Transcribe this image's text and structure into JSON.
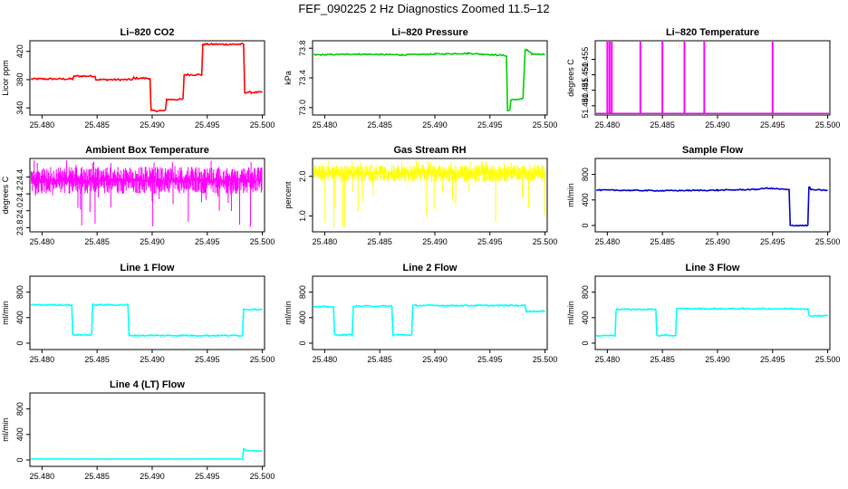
{
  "figure": {
    "title": "FEF_090225  2 Hz Diagnostics Zoomed 11.5–12"
  },
  "chart_data": [
    {
      "type": "line",
      "title": "Li–820 CO2",
      "ylabel": "Licor ppm",
      "xlim": [
        25.4789,
        25.5002
      ],
      "ylim": [
        330,
        435
      ],
      "xticks": [
        25.48,
        25.485,
        25.49,
        25.495,
        25.5
      ],
      "xtick_labels": [
        "25.480",
        "25.485",
        "25.490",
        "25.495",
        "25.500"
      ],
      "yticks": [
        340,
        380,
        420
      ],
      "ytick_labels": [
        "340",
        "380",
        "420"
      ],
      "color": "#ff0000",
      "noise": 1.2,
      "series": [
        {
          "x": [
            25.479,
            25.4828,
            25.4829,
            25.4848,
            25.4849,
            25.4882,
            25.4883,
            25.4898,
            25.4899,
            25.4912,
            25.4913,
            25.4928,
            25.4929,
            25.4945,
            25.4946,
            25.4983,
            25.4984,
            25.5
          ],
          "y": [
            381,
            381,
            385,
            385,
            380,
            380,
            382,
            382,
            336,
            336,
            352,
            352,
            387,
            387,
            430,
            430,
            362,
            362
          ]
        }
      ]
    },
    {
      "type": "line",
      "title": "Li–820 Pressure",
      "ylabel": "kPa",
      "xlim": [
        25.4789,
        25.5002
      ],
      "ylim": [
        72.9,
        73.9
      ],
      "xticks": [
        25.48,
        25.485,
        25.49,
        25.495,
        25.5
      ],
      "xtick_labels": [
        "25.480",
        "25.485",
        "25.490",
        "25.495",
        "25.500"
      ],
      "yticks": [
        73.0,
        73.4,
        73.8
      ],
      "ytick_labels": [
        "73.0",
        "73.4",
        "73.8"
      ],
      "color": "#00cc00",
      "noise": 0.008,
      "series": [
        {
          "x": [
            25.479,
            25.483,
            25.487,
            25.49,
            25.493,
            25.4955,
            25.4965,
            25.4966,
            25.4968,
            25.4969,
            25.498,
            25.4982,
            25.4984,
            25.4988,
            25.5
          ],
          "y": [
            73.71,
            73.72,
            73.71,
            73.72,
            73.73,
            73.71,
            73.7,
            72.96,
            72.96,
            73.1,
            73.12,
            73.78,
            73.77,
            73.72,
            73.72
          ]
        }
      ]
    },
    {
      "type": "line",
      "title": "Li–820 Temperature",
      "ylabel": "degrees C",
      "xlim": [
        25.4789,
        25.5002
      ],
      "ylim": [
        51.437,
        51.461
      ],
      "xticks": [
        25.48,
        25.485,
        25.49,
        25.495,
        25.5
      ],
      "xtick_labels": [
        "25.480",
        "25.485",
        "25.490",
        "25.495",
        "25.500"
      ],
      "yticks": [
        51.44,
        51.445,
        51.45,
        51.455
      ],
      "ytick_labels": [
        "51.440",
        "51.445",
        "51.450",
        "51.455"
      ],
      "color": "#ff00ff",
      "baseline": 51.437,
      "spike_to": 51.461,
      "spikes": [
        25.48,
        25.4802,
        25.4804,
        25.483,
        25.485,
        25.487,
        25.4888,
        25.495
      ]
    },
    {
      "type": "line",
      "title": "Ambient Box Temperature",
      "ylabel": "degrees C",
      "xlim": [
        25.4789,
        25.5002
      ],
      "ylim": [
        23.75,
        24.62
      ],
      "xticks": [
        25.48,
        25.485,
        25.49,
        25.495,
        25.5
      ],
      "xtick_labels": [
        "25.480",
        "25.485",
        "25.490",
        "25.495",
        "25.500"
      ],
      "yticks": [
        23.8,
        24.0,
        24.2,
        24.4
      ],
      "ytick_labels": [
        "23.8",
        "24.0",
        "24.2",
        "24.4"
      ],
      "color": "#ff00ff",
      "band": {
        "x0": 25.479,
        "x1": 25.5,
        "low": 24.2,
        "high": 24.52,
        "spike_low": 23.8,
        "spike_high": 24.6
      }
    },
    {
      "type": "line",
      "title": "Gas Stream RH",
      "ylabel": "percent",
      "xlim": [
        25.4789,
        25.5002
      ],
      "ylim": [
        0.6,
        2.45
      ],
      "xticks": [
        25.48,
        25.485,
        25.49,
        25.495,
        25.5
      ],
      "xtick_labels": [
        "25.480",
        "25.485",
        "25.490",
        "25.495",
        "25.500"
      ],
      "yticks": [
        1.0,
        2.0
      ],
      "ytick_labels": [
        "1.0",
        "2.0"
      ],
      "color": "#ffff00",
      "band": {
        "x0": 25.479,
        "x1": 25.5,
        "low": 1.85,
        "high": 2.3,
        "spike_low": 0.65,
        "spike_high": 2.4
      }
    },
    {
      "type": "line",
      "title": "Sample Flow",
      "ylabel": "ml/min",
      "xlim": [
        25.4789,
        25.5002
      ],
      "ylim": [
        -100,
        1050
      ],
      "xticks": [
        25.48,
        25.485,
        25.49,
        25.495,
        25.5
      ],
      "xtick_labels": [
        "25.480",
        "25.485",
        "25.490",
        "25.495",
        "25.500"
      ],
      "yticks": [
        0,
        400,
        800
      ],
      "ytick_labels": [
        "0",
        "400",
        "800"
      ],
      "color": "#0000cc",
      "noise": 8,
      "series": [
        {
          "x": [
            25.479,
            25.485,
            25.49,
            25.4935,
            25.4945,
            25.4965,
            25.4966,
            25.4982,
            25.4983,
            25.4985,
            25.5
          ],
          "y": [
            555,
            545,
            552,
            565,
            585,
            560,
            0,
            0,
            610,
            560,
            550
          ]
        }
      ]
    },
    {
      "type": "line",
      "title": "Line 1 Flow",
      "ylabel": "ml/min",
      "xlim": [
        25.4789,
        25.5002
      ],
      "ylim": [
        -100,
        1050
      ],
      "xticks": [
        25.48,
        25.485,
        25.49,
        25.495,
        25.5
      ],
      "xtick_labels": [
        "25.480",
        "25.485",
        "25.490",
        "25.495",
        "25.500"
      ],
      "yticks": [
        0,
        400,
        800
      ],
      "ytick_labels": [
        "0",
        "400",
        "800"
      ],
      "color": "#00ffff",
      "noise": 10,
      "series": [
        {
          "x": [
            25.479,
            25.4827,
            25.4828,
            25.4845,
            25.4846,
            25.4878,
            25.4879,
            25.4982,
            25.4983,
            25.5
          ],
          "y": [
            600,
            600,
            130,
            130,
            600,
            600,
            120,
            120,
            530,
            530
          ]
        }
      ]
    },
    {
      "type": "line",
      "title": "Line 2 Flow",
      "ylabel": "ml/min",
      "xlim": [
        25.4789,
        25.5002
      ],
      "ylim": [
        -100,
        1050
      ],
      "xticks": [
        25.48,
        25.485,
        25.49,
        25.495,
        25.5
      ],
      "xtick_labels": [
        "25.480",
        "25.485",
        "25.490",
        "25.495",
        "25.500"
      ],
      "yticks": [
        0,
        400,
        800
      ],
      "ytick_labels": [
        "0",
        "400",
        "800"
      ],
      "color": "#00ffff",
      "noise": 10,
      "series": [
        {
          "x": [
            25.479,
            25.4808,
            25.4809,
            25.4825,
            25.4826,
            25.4861,
            25.4862,
            25.4879,
            25.488,
            25.4982,
            25.4983,
            25.5
          ],
          "y": [
            570,
            570,
            130,
            130,
            580,
            580,
            130,
            130,
            590,
            590,
            500,
            500
          ]
        }
      ]
    },
    {
      "type": "line",
      "title": "Line 3 Flow",
      "ylabel": "ml/min",
      "xlim": [
        25.4789,
        25.5002
      ],
      "ylim": [
        -100,
        1050
      ],
      "xticks": [
        25.48,
        25.485,
        25.49,
        25.495,
        25.5
      ],
      "xtick_labels": [
        "25.480",
        "25.485",
        "25.490",
        "25.495",
        "25.500"
      ],
      "yticks": [
        0,
        400,
        800
      ],
      "ytick_labels": [
        "0",
        "400",
        "800"
      ],
      "color": "#00ffff",
      "noise": 10,
      "series": [
        {
          "x": [
            25.479,
            25.4807,
            25.4808,
            25.4844,
            25.4845,
            25.4862,
            25.4863,
            25.4982,
            25.4983,
            25.5
          ],
          "y": [
            120,
            120,
            530,
            530,
            120,
            120,
            540,
            540,
            430,
            430
          ]
        }
      ]
    },
    {
      "type": "line",
      "title": "Line 4 (LT) Flow",
      "ylabel": "ml/min",
      "xlim": [
        25.4789,
        25.5002
      ],
      "ylim": [
        -100,
        1050
      ],
      "xticks": [
        25.48,
        25.485,
        25.49,
        25.495,
        25.5
      ],
      "xtick_labels": [
        "25.480",
        "25.485",
        "25.490",
        "25.495",
        "25.500"
      ],
      "yticks": [
        0,
        400,
        800
      ],
      "ytick_labels": [
        "0",
        "400",
        "800"
      ],
      "color": "#00ffff",
      "noise": 3,
      "series": [
        {
          "x": [
            25.479,
            25.4982,
            25.4983,
            25.4986,
            25.5
          ],
          "y": [
            15,
            15,
            180,
            145,
            140
          ]
        }
      ]
    }
  ]
}
